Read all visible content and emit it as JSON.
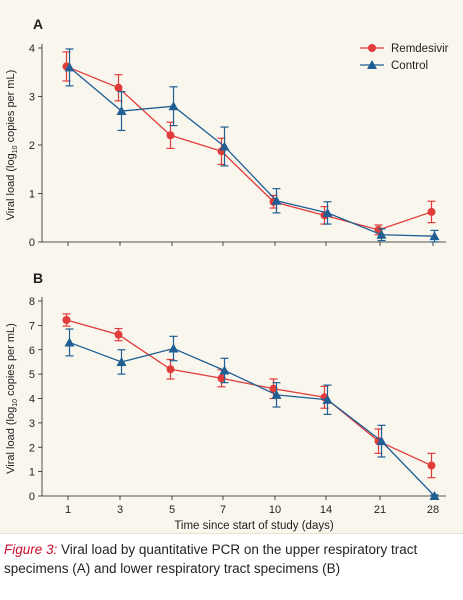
{
  "chart_data": [
    {
      "type": "line",
      "panel_label": "A",
      "ylabel_parts": [
        "Viral load (log",
        "10",
        " copies per mL)"
      ],
      "x_categories": [
        "1",
        "3",
        "5",
        "7",
        "10",
        "14",
        "21",
        "28"
      ],
      "ylim": [
        0,
        4
      ],
      "yticks": [
        "0",
        "1",
        "2",
        "3",
        "4"
      ],
      "legend_placement": "top-right",
      "series": [
        {
          "name": "Remdesivir",
          "color": "#e03c3a",
          "marker": "circle",
          "values": [
            3.62,
            3.18,
            2.2,
            1.87,
            0.83,
            0.55,
            0.25,
            0.62
          ],
          "err_low": [
            0.3,
            0.27,
            0.27,
            0.27,
            0.13,
            0.18,
            0.1,
            0.22
          ],
          "err_high": [
            0.3,
            0.27,
            0.27,
            0.27,
            0.13,
            0.18,
            0.1,
            0.22
          ]
        },
        {
          "name": "Control",
          "color": "#1f5f93",
          "marker": "triangle",
          "values": [
            3.6,
            2.7,
            2.8,
            1.97,
            0.85,
            0.6,
            0.15,
            0.12
          ],
          "err_low": [
            0.38,
            0.4,
            0.4,
            0.4,
            0.25,
            0.23,
            0.12,
            0.12
          ],
          "err_high": [
            0.38,
            0.4,
            0.4,
            0.4,
            0.25,
            0.23,
            0.12,
            0.12
          ]
        }
      ]
    },
    {
      "type": "line",
      "panel_label": "B",
      "ylabel_parts": [
        "Viral load (log",
        "10",
        " copies per mL)"
      ],
      "xlabel": "Time since start of study (days)",
      "x_categories": [
        "1",
        "3",
        "5",
        "7",
        "10",
        "14",
        "21",
        "28"
      ],
      "ylim": [
        0,
        8
      ],
      "yticks": [
        "0",
        "1",
        "2",
        "3",
        "4",
        "5",
        "6",
        "7",
        "8"
      ],
      "series": [
        {
          "name": "Remdesivir",
          "color": "#e03c3a",
          "marker": "circle",
          "values": [
            7.22,
            6.62,
            5.2,
            4.83,
            4.4,
            4.05,
            2.25,
            1.25
          ],
          "err_low": [
            0.25,
            0.25,
            0.4,
            0.35,
            0.4,
            0.45,
            0.5,
            0.5
          ],
          "err_high": [
            0.25,
            0.25,
            0.4,
            0.35,
            0.4,
            0.45,
            0.5,
            0.5
          ]
        },
        {
          "name": "Control",
          "color": "#1f5f93",
          "marker": "triangle",
          "values": [
            6.3,
            5.5,
            6.05,
            5.15,
            4.15,
            3.95,
            2.25,
            0.0
          ],
          "err_low": [
            0.55,
            0.5,
            0.5,
            0.5,
            0.5,
            0.6,
            0.65,
            0.05
          ],
          "err_high": [
            0.55,
            0.5,
            0.5,
            0.5,
            0.5,
            0.6,
            0.65,
            0.05
          ]
        }
      ]
    }
  ],
  "caption": {
    "figure_label": "Figure 3",
    "separator": ":",
    "text": " Viral load by quantitative PCR on the upper respiratory tract specimens (A) and lower respiratory tract specimens (B)"
  }
}
